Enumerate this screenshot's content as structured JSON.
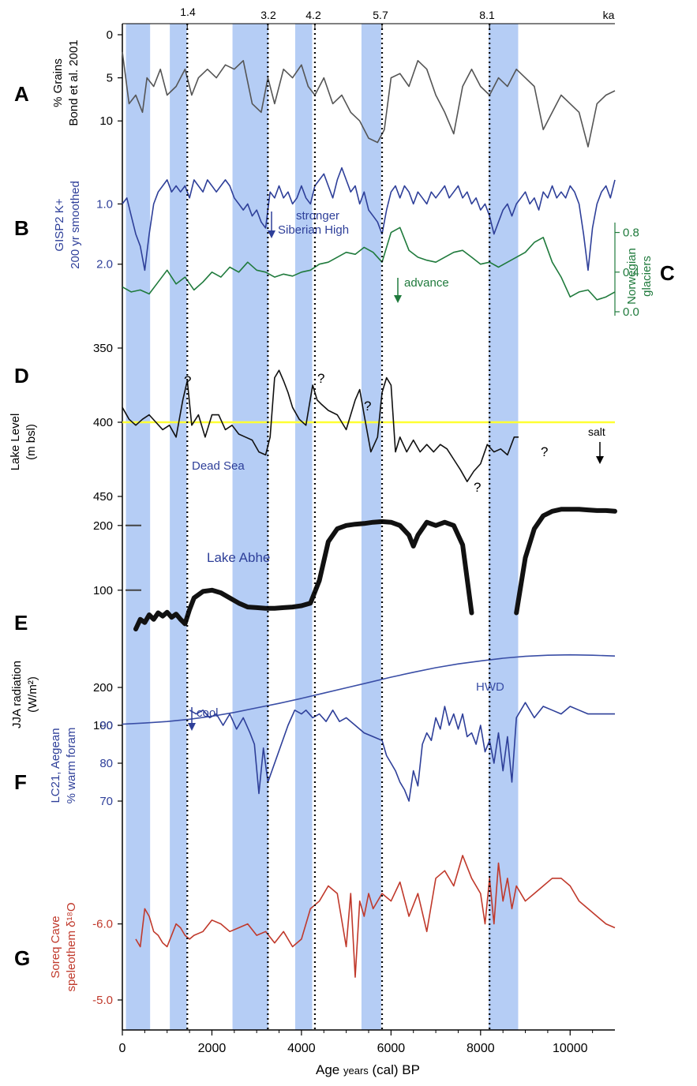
{
  "top_axis": {
    "events": [
      {
        "label": "1.4",
        "x": 1450
      },
      {
        "label": "3.2",
        "x": 3250
      },
      {
        "label": "4.2",
        "x": 4300
      },
      {
        "label": "5.7",
        "x": 5800
      },
      {
        "label": "8.1",
        "x": 8200
      }
    ],
    "unit": "ka"
  },
  "x_axis": {
    "label_main": "Age ",
    "label_small": "years",
    "label_rest": " (cal) BP",
    "ticks": [
      0,
      2000,
      4000,
      6000,
      8000,
      10000
    ],
    "range": [
      0,
      11000
    ]
  },
  "bands": [
    [
      80,
      620
    ],
    [
      1060,
      1440
    ],
    [
      2460,
      3260
    ],
    [
      3860,
      4240
    ],
    [
      5340,
      5780
    ],
    [
      8180,
      8840
    ]
  ],
  "panels": {
    "A": {
      "letter": "A",
      "ylabel_1": "% Grains",
      "ylabel_2": "Bond et al. 2001",
      "ticks": [
        "0",
        "5",
        "10"
      ],
      "color": "#555555"
    },
    "B": {
      "letter": "B",
      "ylabel_1": "GISP2 K+",
      "ylabel_2": "200 yr smoothed",
      "ticks": [
        "1.0",
        "2.0"
      ],
      "annotation_1": "stronger",
      "annotation_2": "Siberian High",
      "color": "#2e3f99"
    },
    "C": {
      "letter": "C",
      "ylabel_1": "Norwegian",
      "ylabel_2": "glaciers",
      "ticks": [
        "0.8",
        "0.4",
        "0.0"
      ],
      "annotation": "advance",
      "color": "#1f7a3c"
    },
    "D": {
      "letter": "D",
      "ylabel_1": "Lake Level",
      "ylabel_2": "(m bsl)",
      "ticks": [
        "350",
        "400",
        "450"
      ],
      "annotation": "Dead Sea",
      "salt": "salt",
      "question": "?",
      "color": "#111111",
      "reference_color": "#ffff33"
    },
    "E": {
      "letter": "E",
      "ticks": [
        "200",
        "100"
      ],
      "annotation": "Lake Abhe",
      "color": "#111111"
    },
    "JJA": {
      "ylabel_1": "JJA radiation",
      "ylabel_2": "(W/m²)",
      "ticks": [
        "200",
        "100"
      ],
      "annotation": "HWD",
      "color": "#3a4ea6"
    },
    "F": {
      "letter": "F",
      "ylabel_1": "LC21, Aegean",
      "ylabel_2": "% warm foram",
      "ticks": [
        "90",
        "80",
        "70"
      ],
      "annotation": "cool",
      "color": "#2e3f99"
    },
    "G": {
      "letter": "G",
      "ylabel_1": "Soreq Cave",
      "ylabel_2": "speleothem δ¹⁸O",
      "ticks": [
        "-6.0",
        "-5.0"
      ],
      "color": "#c0392b"
    }
  },
  "chart_data": {
    "type": "line",
    "x_label": "Age years (cal) BP",
    "x_range": [
      0,
      11000
    ],
    "series": [
      {
        "name": "% Grains",
        "units": "%",
        "inverted": true,
        "x": [
          0,
          150,
          300,
          450,
          550,
          700,
          850,
          1000,
          1200,
          1400,
          1550,
          1700,
          1900,
          2100,
          2300,
          2500,
          2700,
          2900,
          3100,
          3250,
          3400,
          3600,
          3800,
          4000,
          4150,
          4300,
          4500,
          4700,
          4900,
          5100,
          5300,
          5500,
          5700,
          5850,
          6000,
          6200,
          6400,
          6600,
          6800,
          7000,
          7200,
          7400,
          7600,
          7800,
          8000,
          8200,
          8400,
          8600,
          8800,
          9000,
          9200,
          9400,
          9600,
          9800,
          10000,
          10200,
          10400,
          10600,
          10800,
          11000
        ],
        "y": [
          2,
          8,
          7,
          9,
          5,
          6,
          4,
          7,
          6,
          4,
          7,
          5,
          4,
          5,
          3.5,
          4,
          3,
          8,
          9,
          5,
          8,
          4,
          5,
          3.5,
          6,
          7,
          5,
          8,
          7,
          9,
          10,
          12,
          12.5,
          11,
          5,
          4.5,
          6,
          3,
          4,
          7,
          9,
          11.5,
          6,
          4,
          6,
          7,
          5,
          6,
          4,
          5,
          6,
          11,
          9,
          7,
          8,
          9,
          13,
          8,
          7,
          6.5
        ]
      },
      {
        "name": "GISP2 K+",
        "units": "200 yr smoothed",
        "inverted": true,
        "x": [
          0,
          100,
          200,
          300,
          400,
          500,
          600,
          700,
          800,
          900,
          1000,
          1100,
          1200,
          1300,
          1400,
          1500,
          1600,
          1700,
          1800,
          1900,
          2000,
          2100,
          2200,
          2300,
          2400,
          2500,
          2600,
          2700,
          2800,
          2900,
          3000,
          3100,
          3200,
          3300,
          3400,
          3500,
          3600,
          3700,
          3800,
          3900,
          4000,
          4100,
          4200,
          4300,
          4400,
          4500,
          4600,
          4700,
          4800,
          4900,
          5000,
          5100,
          5200,
          5300,
          5400,
          5500,
          5600,
          5700,
          5800,
          5900,
          6000,
          6100,
          6200,
          6300,
          6400,
          6500,
          6600,
          6700,
          6800,
          6900,
          7000,
          7100,
          7200,
          7300,
          7400,
          7500,
          7600,
          7700,
          7800,
          7900,
          8000,
          8100,
          8200,
          8300,
          8400,
          8500,
          8600,
          8700,
          8800,
          8900,
          9000,
          9100,
          9200,
          9300,
          9400,
          9500,
          9600,
          9700,
          9800,
          9900,
          10000,
          10100,
          10200,
          10300,
          10400,
          10500,
          10600,
          10700,
          10800,
          10900,
          11000
        ],
        "y": [
          1.0,
          0.9,
          1.2,
          1.5,
          1.7,
          2.1,
          1.5,
          1.0,
          0.8,
          0.7,
          0.6,
          0.8,
          0.7,
          0.8,
          0.7,
          0.9,
          0.6,
          0.7,
          0.8,
          0.6,
          0.7,
          0.8,
          0.7,
          0.6,
          0.7,
          0.9,
          1.0,
          1.1,
          1.0,
          1.2,
          1.1,
          1.3,
          1.4,
          0.8,
          0.9,
          0.7,
          0.9,
          0.8,
          1.0,
          0.9,
          0.7,
          0.9,
          1.0,
          0.7,
          0.6,
          0.5,
          0.7,
          0.9,
          0.6,
          0.4,
          0.6,
          0.8,
          0.7,
          1.0,
          0.8,
          1.1,
          1.2,
          1.3,
          1.5,
          1.1,
          0.8,
          0.7,
          0.9,
          0.7,
          0.8,
          1.0,
          0.8,
          0.9,
          1.0,
          0.8,
          0.9,
          0.8,
          0.7,
          0.9,
          0.8,
          0.7,
          0.9,
          0.8,
          1.0,
          0.9,
          1.1,
          1.0,
          1.2,
          1.5,
          1.3,
          1.1,
          1.0,
          1.2,
          1.0,
          0.9,
          0.8,
          1.0,
          0.9,
          1.1,
          0.8,
          0.9,
          0.7,
          0.9,
          0.8,
          0.9,
          0.7,
          0.8,
          1.0,
          1.5,
          2.1,
          1.4,
          1.0,
          0.8,
          0.7,
          0.9,
          0.6
        ]
      },
      {
        "name": "Norwegian glaciers",
        "units": "",
        "inverted": false,
        "x": [
          0,
          200,
          400,
          600,
          800,
          1000,
          1200,
          1400,
          1600,
          1800,
          2000,
          2200,
          2400,
          2600,
          2800,
          3000,
          3200,
          3400,
          3600,
          3800,
          4000,
          4200,
          4400,
          4600,
          4800,
          5000,
          5200,
          5400,
          5600,
          5800,
          6000,
          6200,
          6400,
          6600,
          6800,
          7000,
          7200,
          7400,
          7600,
          7800,
          8000,
          8200,
          8400,
          8600,
          8800,
          9000,
          9200,
          9400,
          9600,
          9800,
          10000,
          10200,
          10400,
          10600,
          10800,
          11000
        ],
        "y": [
          0.25,
          0.2,
          0.22,
          0.18,
          0.3,
          0.42,
          0.28,
          0.35,
          0.22,
          0.3,
          0.4,
          0.35,
          0.45,
          0.4,
          0.5,
          0.42,
          0.4,
          0.35,
          0.38,
          0.36,
          0.4,
          0.42,
          0.48,
          0.5,
          0.55,
          0.6,
          0.58,
          0.65,
          0.6,
          0.5,
          0.8,
          0.85,
          0.62,
          0.55,
          0.52,
          0.5,
          0.55,
          0.6,
          0.62,
          0.55,
          0.48,
          0.5,
          0.45,
          0.5,
          0.55,
          0.6,
          0.7,
          0.75,
          0.5,
          0.35,
          0.15,
          0.2,
          0.22,
          0.12,
          0.15,
          0.2
        ]
      },
      {
        "name": "Dead Sea",
        "units": "m bsl",
        "inverted": true,
        "reference_level": 400,
        "x": [
          0,
          150,
          300,
          450,
          600,
          750,
          900,
          1050,
          1200,
          1350,
          1450,
          1550,
          1700,
          1850,
          2000,
          2150,
          2300,
          2450,
          2600,
          2750,
          2900,
          3050,
          3200,
          3300,
          3400,
          3500,
          3600,
          3700,
          3800,
          3950,
          4100,
          4250,
          4350,
          4450,
          4600,
          4800,
          5000,
          5200,
          5300,
          5400,
          5550,
          5700,
          5800,
          5900,
          6000,
          6100,
          6200,
          6350,
          6500,
          6650,
          6800,
          6950,
          7100,
          7250,
          7400,
          7550,
          7700,
          7850,
          8000,
          8150,
          8300,
          8450,
          8600,
          8750,
          8850
        ],
        "y": [
          390,
          398,
          402,
          398,
          395,
          400,
          405,
          402,
          410,
          385,
          372,
          402,
          395,
          410,
          395,
          395,
          405,
          402,
          408,
          410,
          412,
          420,
          422,
          410,
          370,
          365,
          372,
          380,
          390,
          398,
          402,
          375,
          385,
          388,
          392,
          395,
          405,
          385,
          378,
          395,
          420,
          410,
          380,
          370,
          375,
          420,
          410,
          420,
          412,
          420,
          415,
          420,
          415,
          418,
          425,
          432,
          440,
          433,
          428,
          415,
          420,
          418,
          422,
          410,
          410
        ]
      },
      {
        "name": "Lake Abhe",
        "units": "",
        "inverted": false,
        "x": [
          300,
          400,
          500,
          600,
          700,
          800,
          900,
          1000,
          1100,
          1200,
          1300,
          1400,
          1500,
          1600,
          1800,
          2000,
          2200,
          2400,
          2600,
          2800,
          3000,
          3200,
          3400,
          3600,
          3800,
          4000,
          4200,
          4400,
          4600,
          4800,
          5000,
          5200,
          5400,
          5600,
          5800,
          6000,
          6200,
          6400,
          6500,
          6600,
          6800,
          7000,
          7200,
          7400,
          7600,
          7800,
          8800,
          9000,
          9200,
          9400,
          9600,
          9800,
          10000,
          10200,
          10400,
          10600,
          10800,
          11000
        ],
        "y": [
          40,
          55,
          50,
          62,
          55,
          65,
          60,
          66,
          58,
          63,
          55,
          48,
          70,
          88,
          98,
          100,
          96,
          88,
          80,
          74,
          73,
          72,
          72,
          73,
          74,
          76,
          80,
          115,
          175,
          195,
          200,
          202,
          203,
          205,
          206,
          205,
          200,
          185,
          168,
          185,
          205,
          200,
          205,
          200,
          170,
          65,
          65,
          150,
          195,
          215,
          222,
          225,
          225,
          225,
          224,
          223,
          223,
          222
        ]
      },
      {
        "name": "JJA radiation",
        "units": "W/m²",
        "inverted": false,
        "x": [
          0,
          500,
          1000,
          1500,
          2000,
          2500,
          3000,
          3500,
          4000,
          4500,
          5000,
          5500,
          6000,
          6500,
          7000,
          7500,
          8000,
          8500,
          9000,
          9500,
          10000,
          10500,
          11000
        ],
        "y": [
          103,
          106,
          110,
          116,
          124,
          134,
          146,
          158,
          171,
          185,
          199,
          213,
          227,
          240,
          252,
          262,
          270,
          277,
          282,
          285,
          286,
          285,
          283
        ]
      },
      {
        "name": "LC21, Aegean",
        "units": "% warm foram",
        "inverted": false,
        "x": [
          1500,
          1650,
          1800,
          1950,
          2100,
          2250,
          2400,
          2550,
          2700,
          2850,
          2950,
          3050,
          3150,
          3250,
          3400,
          3550,
          3700,
          3850,
          4000,
          4100,
          4250,
          4400,
          4550,
          4700,
          4850,
          5000,
          5200,
          5400,
          5600,
          5800,
          5900,
          6000,
          6100,
          6200,
          6300,
          6400,
          6500,
          6600,
          6700,
          6800,
          6900,
          7000,
          7100,
          7200,
          7300,
          7400,
          7500,
          7600,
          7700,
          7800,
          7900,
          8000,
          8100,
          8200,
          8300,
          8400,
          8500,
          8600,
          8700,
          8800,
          9000,
          9200,
          9400,
          9600,
          9800,
          10000,
          10200,
          10400,
          10600,
          10800,
          11000
        ],
        "y": [
          94,
          93,
          94,
          92,
          93,
          90,
          93,
          89,
          92,
          88,
          85,
          72,
          84,
          75,
          80,
          85,
          90,
          94,
          93,
          94,
          92,
          93,
          91,
          94,
          91,
          92,
          90,
          88,
          87,
          86,
          82,
          80,
          78,
          75,
          73,
          70,
          78,
          74,
          85,
          88,
          86,
          92,
          89,
          95,
          90,
          93,
          89,
          93,
          87,
          88,
          85,
          90,
          83,
          86,
          80,
          88,
          78,
          87,
          75,
          92,
          96,
          92,
          95,
          94,
          93,
          95,
          94,
          93,
          93,
          93,
          93
        ]
      },
      {
        "name": "Soreq Cave",
        "units": "speleothem δ¹⁸O",
        "inverted": true,
        "x": [
          300,
          400,
          500,
          600,
          700,
          800,
          900,
          1000,
          1100,
          1200,
          1300,
          1400,
          1500,
          1600,
          1800,
          2000,
          2200,
          2400,
          2600,
          2800,
          3000,
          3200,
          3400,
          3600,
          3800,
          4000,
          4200,
          4400,
          4600,
          4800,
          5000,
          5100,
          5200,
          5300,
          5400,
          5500,
          5600,
          5800,
          6000,
          6200,
          6400,
          6600,
          6800,
          7000,
          7200,
          7400,
          7600,
          7800,
          8000,
          8100,
          8200,
          8300,
          8400,
          8500,
          8600,
          8700,
          8800,
          9000,
          9200,
          9400,
          9600,
          9800,
          10000,
          10200,
          10400,
          10600,
          10800,
          11000
        ],
        "y": [
          -5.8,
          -5.7,
          -6.2,
          -6.1,
          -5.9,
          -5.85,
          -5.75,
          -5.7,
          -5.85,
          -6.0,
          -5.95,
          -5.85,
          -5.8,
          -5.85,
          -5.9,
          -6.05,
          -6.0,
          -5.9,
          -5.95,
          -6.0,
          -5.85,
          -5.9,
          -5.75,
          -5.9,
          -5.7,
          -5.8,
          -6.2,
          -6.3,
          -6.5,
          -6.4,
          -5.7,
          -6.4,
          -5.3,
          -6.3,
          -6.1,
          -6.4,
          -6.2,
          -6.4,
          -6.3,
          -6.55,
          -6.1,
          -6.4,
          -5.9,
          -6.6,
          -6.7,
          -6.5,
          -6.9,
          -6.6,
          -6.4,
          -6.0,
          -6.6,
          -6.0,
          -6.8,
          -6.3,
          -6.6,
          -6.2,
          -6.5,
          -6.3,
          -6.4,
          -6.5,
          -6.6,
          -6.6,
          -6.5,
          -6.3,
          -6.2,
          -6.1,
          -6.0,
          -5.95
        ]
      }
    ]
  }
}
